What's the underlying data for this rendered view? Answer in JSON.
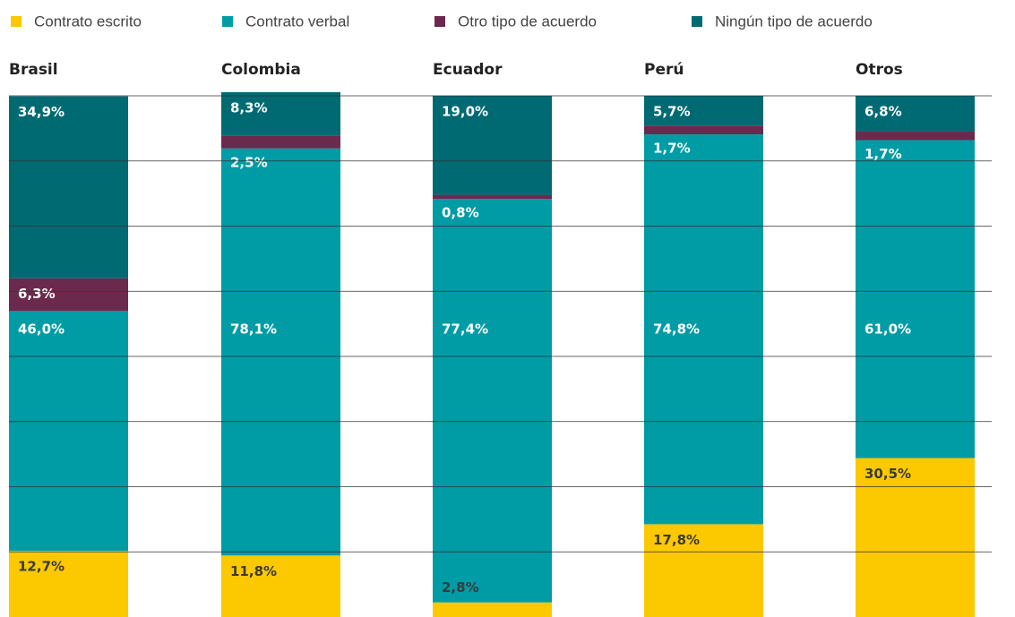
{
  "chart_data": {
    "type": "stacked_bar",
    "categories": [
      "Brasil",
      "Colombia",
      "Ecuador",
      "Perú",
      "Otros"
    ],
    "series": [
      {
        "name": "Contrato escrito",
        "color": "#fcc800",
        "values": [
          12.7,
          11.8,
          2.8,
          17.8,
          30.5
        ],
        "value_labels": [
          "12,7%",
          "11,8%",
          "2,8%",
          "17,8%",
          "30,5%"
        ]
      },
      {
        "name": "Contrato verbal",
        "color": "#009ca6",
        "values": [
          46.0,
          78.1,
          77.4,
          74.8,
          61.0
        ],
        "value_labels": [
          "46,0%",
          "78,1%",
          "77,4%",
          "74,8%",
          "61,0%"
        ]
      },
      {
        "name": "Otro tipo de acuerdo",
        "color": "#6b2a4d",
        "values": [
          6.3,
          2.5,
          0.8,
          1.7,
          1.7
        ],
        "value_labels": [
          "6,3%",
          "2,5%",
          "0,8%",
          "1,7%",
          "1,7%"
        ]
      },
      {
        "name": "Ningún tipo de acuerdo",
        "color": "#006a73",
        "values": [
          34.9,
          8.3,
          19.0,
          5.7,
          6.8
        ],
        "value_labels": [
          "34,9%",
          "8,3%",
          "19,0%",
          "5,7%",
          "6,8%"
        ]
      }
    ],
    "ylim": [
      0,
      100
    ],
    "yticks": [
      0,
      12.5,
      25,
      37.5,
      50,
      62.5,
      75,
      87.5,
      100
    ],
    "grid": true
  }
}
